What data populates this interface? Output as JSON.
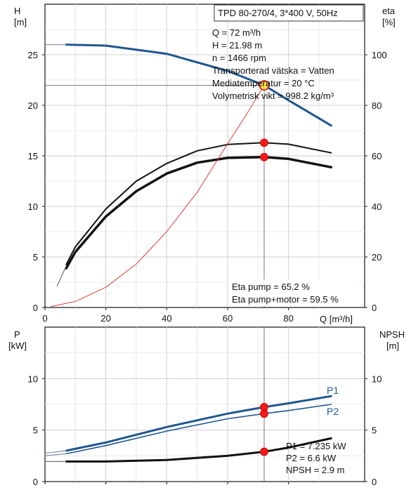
{
  "chart_data": [
    {
      "type": "line",
      "title": "TPD 80-270/4, 3*400 V, 50Hz",
      "xlabel": "Q [m³/h]",
      "ylabel_left": [
        "H",
        "[m]"
      ],
      "ylabel_right": [
        "eta",
        "[%]"
      ],
      "xlim": [
        0,
        105
      ],
      "ylim_left": [
        0,
        30
      ],
      "ylim_right": [
        0,
        120
      ],
      "x_ticks": [
        0,
        20,
        40,
        60,
        80
      ],
      "y_ticks_left": [
        0,
        5,
        10,
        15,
        20,
        25
      ],
      "y_ticks_right": [
        0,
        20,
        40,
        60,
        80,
        100
      ],
      "grid": true,
      "operating_info": [
        "Q = 72 m³/h",
        "H = 21.98 m",
        "n = 1466 rpm",
        "Transporterad vätska = Vatten",
        "Mediatemperatur = 20 °C",
        "Volymetrisk vikt = 998.2 kg/m³"
      ],
      "eta_info": [
        "Eta pump = 65.2 %",
        "Eta pump+motor = 59.5 %"
      ],
      "series": [
        {
          "key": "H",
          "axis": "left",
          "color": "#1f5691",
          "width": 3,
          "x": [
            7,
            20,
            40,
            60,
            72,
            80,
            94
          ],
          "y": [
            26.0,
            25.9,
            25.1,
            23.4,
            21.98,
            20.5,
            18.0
          ]
        },
        {
          "key": "H-ext",
          "axis": "left",
          "color": "#6b7d94",
          "width": 1,
          "x": [
            0,
            7
          ],
          "y": [
            26.0,
            26.0
          ]
        },
        {
          "key": "eta-pump",
          "axis": "right",
          "color": "#111111",
          "width": 2,
          "x": [
            7,
            10,
            20,
            30,
            40,
            50,
            60,
            72,
            80,
            94
          ],
          "y": [
            17,
            24,
            39,
            50,
            57,
            62,
            64.5,
            65.2,
            64.6,
            61.2
          ]
        },
        {
          "key": "eta-pump-motor",
          "axis": "right",
          "color": "#111111",
          "width": 3.5,
          "x": [
            7,
            10,
            20,
            30,
            40,
            50,
            60,
            72,
            80,
            94
          ],
          "y": [
            15.5,
            22,
            36,
            46,
            53,
            57.3,
            59.2,
            59.5,
            58.8,
            55.5
          ]
        },
        {
          "key": "eta-thin",
          "axis": "right",
          "color": "#555555",
          "width": 1,
          "x": [
            4,
            7
          ],
          "y": [
            8.5,
            16.5
          ]
        },
        {
          "key": "system-curve",
          "axis": "left",
          "color": "#e0403a",
          "width": 1,
          "x": [
            2,
            10,
            20,
            30,
            40,
            50,
            60,
            66,
            72
          ],
          "y": [
            0.1,
            0.6,
            2.0,
            4.3,
            7.5,
            11.4,
            16.2,
            19.0,
            21.98
          ]
        }
      ],
      "operating_point": {
        "x": 72,
        "y": 21.98
      },
      "markers_right": [
        {
          "x": 72,
          "y": 65.2
        },
        {
          "x": 72,
          "y": 59.5
        }
      ]
    },
    {
      "type": "line",
      "ylabel_left": [
        "P",
        "[kW]"
      ],
      "ylabel_right": [
        "NPSH",
        "[m]"
      ],
      "xlim": [
        0,
        105
      ],
      "ylim": [
        0,
        15
      ],
      "y_ticks_left": [
        0,
        5,
        10
      ],
      "y_ticks_right": [
        0,
        5,
        10
      ],
      "grid": true,
      "info": [
        "P1 = 7.235 kW",
        "P2 = 6.6 kW",
        "NPSH = 2.9 m"
      ],
      "series": [
        {
          "name": "P1",
          "color": "#1f5691",
          "width": 3,
          "x": [
            7,
            20,
            40,
            60,
            72,
            80,
            94
          ],
          "y": [
            3.0,
            3.8,
            5.3,
            6.6,
            7.235,
            7.6,
            8.3
          ]
        },
        {
          "name": "P2",
          "color": "#1f5691",
          "width": 1.6,
          "x": [
            7,
            20,
            40,
            60,
            72,
            80,
            94
          ],
          "y": [
            2.7,
            3.5,
            4.9,
            6.1,
            6.6,
            6.9,
            7.5
          ]
        },
        {
          "key": "NPSH",
          "color": "#111111",
          "width": 3,
          "x": [
            7,
            20,
            40,
            60,
            72,
            80,
            94
          ],
          "y": [
            1.95,
            1.95,
            2.1,
            2.5,
            2.9,
            3.3,
            4.2
          ]
        },
        {
          "key": "P1-ext",
          "color": "#6b7d94",
          "width": 1,
          "x": [
            0,
            7
          ],
          "y": [
            2.75,
            3.0
          ]
        },
        {
          "key": "P2-ext",
          "color": "#6b7d94",
          "width": 1,
          "x": [
            0,
            7
          ],
          "y": [
            2.5,
            2.7
          ]
        },
        {
          "key": "NPSH-ext",
          "color": "#555555",
          "width": 1,
          "x": [
            0,
            7
          ],
          "y": [
            1.95,
            1.95
          ]
        }
      ],
      "markers": [
        {
          "x": 72,
          "y": 7.235
        },
        {
          "x": 72,
          "y": 6.6
        },
        {
          "x": 72,
          "y": 2.9
        }
      ]
    }
  ]
}
